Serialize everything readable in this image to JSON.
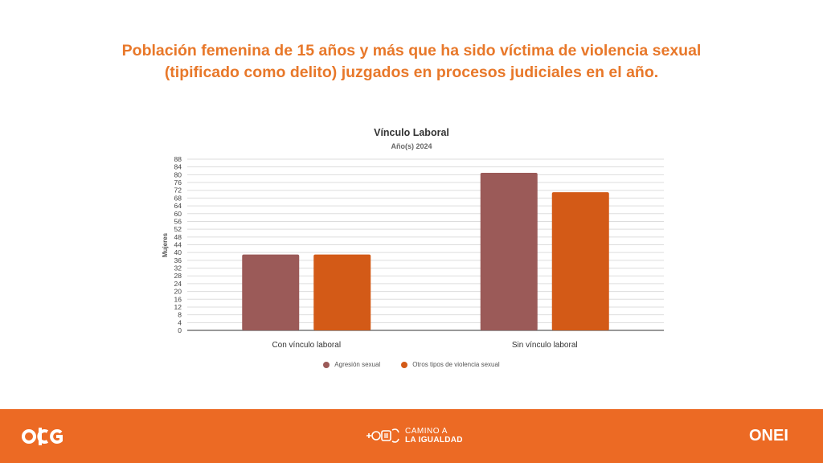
{
  "header": {
    "title_line1": "Población femenina de 15 años y más que ha sido víctima de violencia sexual",
    "title_line2": "(tipificado como delito) juzgados en procesos judiciales en el año."
  },
  "chart_data": {
    "type": "bar",
    "title": "Vínculo Laboral",
    "subtitle": "Año(s) 2024",
    "ylabel": "Mujeres",
    "xlabel": "",
    "categories": [
      "Con vínculo laboral",
      "Sin vínculo laboral"
    ],
    "series": [
      {
        "name": "Agresión sexual",
        "values": [
          39,
          81
        ],
        "color": "#9b5a58"
      },
      {
        "name": "Otros tipos de violencia sexual",
        "values": [
          39,
          71
        ],
        "color": "#d35a17"
      }
    ],
    "ylim": [
      0,
      88
    ],
    "yticks": [
      0,
      4,
      8,
      12,
      16,
      20,
      24,
      28,
      32,
      36,
      40,
      44,
      48,
      52,
      56,
      60,
      64,
      68,
      72,
      76,
      80,
      84,
      88
    ],
    "grid": true,
    "legend_position": "bottom"
  },
  "footer": {
    "logo_left": "odg",
    "logo_center_line1": "CAMINO A",
    "logo_center_line2": "LA IGUALDAD",
    "logo_right": "ONEI",
    "background_color": "#ec6a24"
  }
}
